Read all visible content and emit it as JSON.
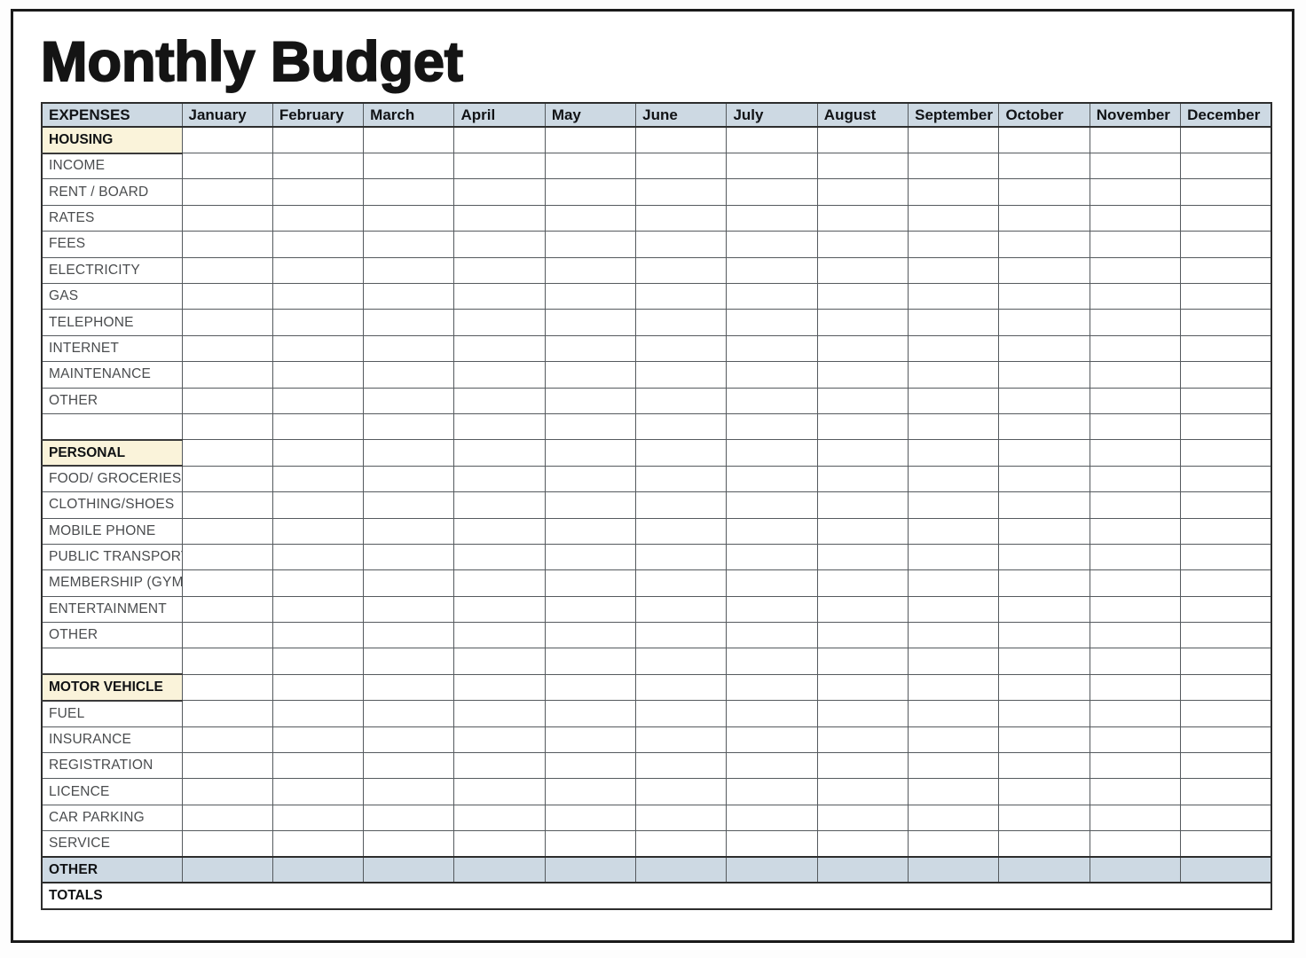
{
  "page": {
    "title": "Monthly Budget"
  },
  "table": {
    "expenses_header": "EXPENSES",
    "months": [
      "January",
      "February",
      "March",
      "April",
      "May",
      "June",
      "July",
      "August",
      "September",
      "October",
      "November",
      "December"
    ],
    "rows": [
      {
        "type": "section",
        "label": "HOUSING"
      },
      {
        "type": "item",
        "label": "INCOME"
      },
      {
        "type": "item",
        "label": "RENT / BOARD"
      },
      {
        "type": "item",
        "label": "RATES"
      },
      {
        "type": "item",
        "label": "FEES"
      },
      {
        "type": "item",
        "label": "ELECTRICITY"
      },
      {
        "type": "item",
        "label": "GAS"
      },
      {
        "type": "item",
        "label": "TELEPHONE"
      },
      {
        "type": "item",
        "label": "INTERNET"
      },
      {
        "type": "item",
        "label": "MAINTENANCE"
      },
      {
        "type": "item",
        "label": "OTHER"
      },
      {
        "type": "blank",
        "label": ""
      },
      {
        "type": "section",
        "label": "PERSONAL"
      },
      {
        "type": "item",
        "label": "FOOD/ GROCERIES"
      },
      {
        "type": "item",
        "label": "CLOTHING/SHOES"
      },
      {
        "type": "item",
        "label": "MOBILE PHONE"
      },
      {
        "type": "item",
        "label": "PUBLIC TRANSPORT"
      },
      {
        "type": "item",
        "label": "MEMBERSHIP (GYM)"
      },
      {
        "type": "item",
        "label": "ENTERTAINMENT"
      },
      {
        "type": "item",
        "label": "OTHER"
      },
      {
        "type": "blank",
        "label": ""
      },
      {
        "type": "section",
        "label": "MOTOR VEHICLE"
      },
      {
        "type": "item",
        "label": "FUEL"
      },
      {
        "type": "item",
        "label": "INSURANCE"
      },
      {
        "type": "item",
        "label": "REGISTRATION"
      },
      {
        "type": "item",
        "label": "LICENCE"
      },
      {
        "type": "item",
        "label": "CAR PARKING"
      },
      {
        "type": "item",
        "label": "SERVICE"
      },
      {
        "type": "highlight",
        "label": "OTHER"
      },
      {
        "type": "totals",
        "label": "TOTALS"
      }
    ],
    "colors": {
      "header_bg": "#cdd9e3",
      "section_bg": "#faf3da",
      "highlight_bg": "#cdd9e3"
    }
  }
}
